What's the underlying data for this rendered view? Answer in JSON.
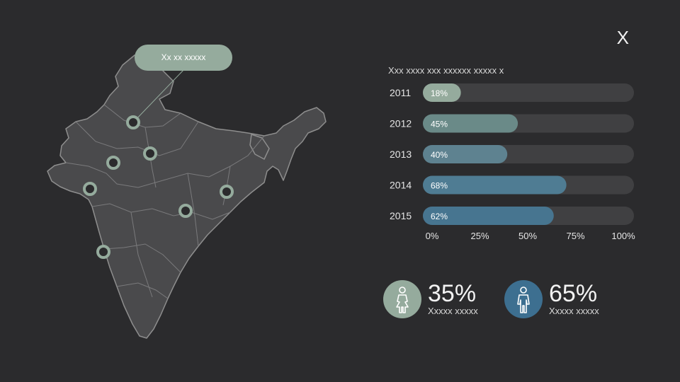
{
  "header": {
    "corner_mark": "X"
  },
  "map": {
    "callout_label": "Xx xx xxxxx",
    "colors": {
      "land": "#4a4a4c",
      "border": "#8e8e8e",
      "marker": "#95ab9d",
      "marker_fill": "#2b2b2d"
    }
  },
  "chart_data": {
    "type": "bar",
    "orientation": "horizontal",
    "title": "Xxx xxxx xxx xxxxxx xxxxx x",
    "categories": [
      "2011",
      "2012",
      "2013",
      "2014",
      "2015"
    ],
    "values": [
      18,
      45,
      40,
      68,
      62
    ],
    "value_labels": [
      "18%",
      "45%",
      "40%",
      "68%",
      "62%"
    ],
    "xlim": [
      0,
      100
    ],
    "x_ticks": [
      "0%",
      "25%",
      "50%",
      "75%",
      "100%"
    ],
    "colors": [
      "#95ab9d",
      "#6a8a88",
      "#5e8290",
      "#4f7c93",
      "#477590"
    ],
    "track_color": "#404042",
    "grid": false
  },
  "stats": [
    {
      "value": "35%",
      "label": "Xxxxx xxxxx",
      "icon": "female-person-icon",
      "color": "#95ab9d"
    },
    {
      "value": "65%",
      "label": "Xxxxx xxxxx",
      "icon": "male-person-icon",
      "color": "#3d6f90"
    }
  ]
}
